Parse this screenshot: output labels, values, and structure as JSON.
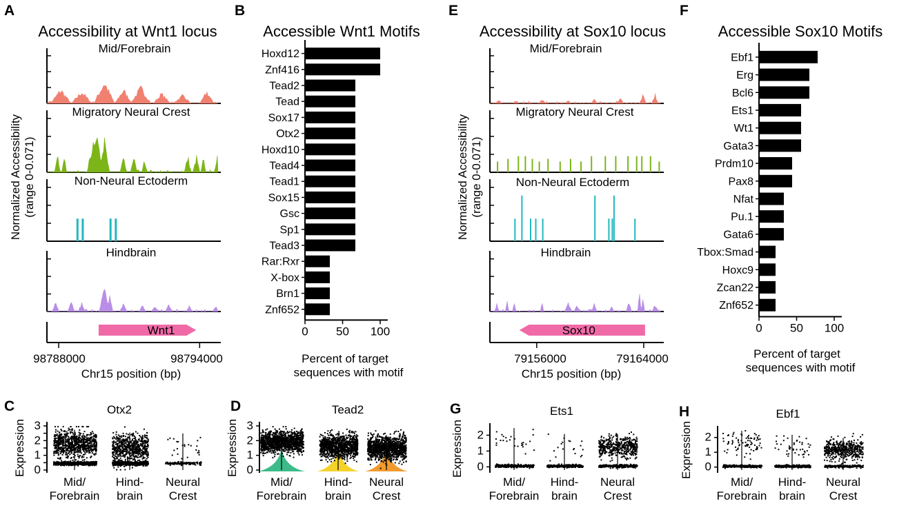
{
  "panel_letters": {
    "A": "A",
    "B": "B",
    "C": "C",
    "D": "D",
    "E": "E",
    "F": "F",
    "G": "G",
    "H": "H"
  },
  "colors": {
    "mid_forebrain": "#f08070",
    "neural_crest": "#7cb518",
    "non_neural": "#1fb8bf",
    "hindbrain": "#b98ee6",
    "gene": "#f06aa8",
    "bar": "#000000",
    "violin_mid": "#3dba8a",
    "violin_hind": "#f5d22a",
    "violin_nc": "#f29a2e"
  },
  "chart_data": [
    {
      "id": "A",
      "type": "area",
      "title": "Accessibility at Wnt1 locus",
      "ylabel": "Normalized Accessibility (range 0-0.071)",
      "xlabel": "Chr15 position (bp)",
      "x_ticks": [
        98788000,
        98794000
      ],
      "xlim": [
        98787500,
        98794900
      ],
      "tracks": [
        "Mid/Forebrain",
        "Migratory Neural Crest",
        "Non-Neural Ectoderm",
        "Hindbrain"
      ],
      "gene": {
        "name": "Wnt1",
        "start": 98789700,
        "end": 98793850,
        "strand": "+"
      }
    },
    {
      "id": "B",
      "type": "bar",
      "orientation": "horizontal",
      "title": "Accessible Wnt1 Motifs",
      "categories": [
        "Hoxd12",
        "Znf416",
        "Tead2",
        "Tead",
        "Sox17",
        "Otx2",
        "Hoxd10",
        "Tead4",
        "Tead1",
        "Sox15",
        "Gsc",
        "Sp1",
        "Tead3",
        "Rar:Rxr",
        "X-box",
        "Brn1",
        "Znf652"
      ],
      "values": [
        100,
        100,
        67,
        67,
        67,
        67,
        67,
        67,
        67,
        67,
        67,
        67,
        67,
        33,
        33,
        33,
        33
      ],
      "xlim": [
        0,
        110
      ],
      "x_ticks": [
        0,
        50,
        100
      ],
      "xlabel": "Percent of target sequences with motif",
      "xlabel_lines": [
        "Percent of target",
        "sequences with motif"
      ]
    },
    {
      "id": "E",
      "type": "area",
      "title": "Accessibility at Sox10 locus",
      "ylabel": "Normalized Accessibility (range 0-0.071)",
      "xlabel": "Chr15 position (bp)",
      "x_ticks": [
        79156000,
        79164000
      ],
      "xlim": [
        79152500,
        79165500
      ],
      "tracks": [
        "Mid/Forebrain",
        "Migratory Neural Crest",
        "Non-Neural Ectoderm",
        "Hindbrain"
      ],
      "gene": {
        "name": "Sox10",
        "start": 79154700,
        "end": 79164100,
        "strand": "-"
      }
    },
    {
      "id": "F",
      "type": "bar",
      "orientation": "horizontal",
      "title": "Accessible Sox10 Motifs",
      "categories": [
        "Ebf1",
        "Erg",
        "Bcl6",
        "Ets1",
        "Wt1",
        "Gata3",
        "Prdm10",
        "Pax8",
        "Nfat",
        "Pu.1",
        "Gata6",
        "Tbox:Smad",
        "Hoxc9",
        "Zcan22",
        "Znf652"
      ],
      "values": [
        78,
        67,
        67,
        56,
        56,
        56,
        44,
        44,
        33,
        33,
        33,
        22,
        22,
        22,
        22
      ],
      "xlim": [
        0,
        110
      ],
      "x_ticks": [
        0,
        50,
        100
      ],
      "xlabel": "Percent of target sequences with motif",
      "xlabel_lines": [
        "Percent of target",
        "sequences with motif"
      ]
    },
    {
      "id": "C",
      "type": "scatter",
      "title": "Otx2",
      "ylabel": "Expression",
      "ylim": [
        0,
        3
      ],
      "y_ticks": [
        0,
        0.5,
        1,
        1.5,
        2,
        2.5,
        3
      ],
      "groups": [
        "Mid/ Forebrain",
        "Hind- brain",
        "Neural Crest"
      ],
      "group_lines": [
        [
          "Mid/",
          "Forebrain"
        ],
        [
          "Hind-",
          "brain"
        ],
        [
          "Neural",
          "Crest"
        ]
      ]
    },
    {
      "id": "D",
      "type": "scatter",
      "title": "Tead2",
      "ylabel": "Expression",
      "ylim": [
        0,
        3
      ],
      "y_ticks": [
        0,
        1,
        2,
        3
      ],
      "groups": [
        "Mid/ Forebrain",
        "Hind- brain",
        "Neural Crest"
      ],
      "group_lines": [
        [
          "Mid/",
          "Forebrain"
        ],
        [
          "Hind-",
          "brain"
        ],
        [
          "Neural",
          "Crest"
        ]
      ]
    },
    {
      "id": "G",
      "type": "scatter",
      "title": "Ets1",
      "ylabel": "Expression",
      "ylim": [
        -0.2,
        2.5
      ],
      "y_ticks": [
        0,
        1,
        2
      ],
      "groups": [
        "Mid/ Forebrain",
        "Hind- brain",
        "Neural Crest"
      ],
      "group_lines": [
        [
          "Mid/",
          "Forebrain"
        ],
        [
          "Hind-",
          "brain"
        ],
        [
          "Neural",
          "Crest"
        ]
      ]
    },
    {
      "id": "H",
      "type": "scatter",
      "title": "Ebf1",
      "ylabel": "Expression",
      "ylim": [
        -0.2,
        2.5
      ],
      "y_ticks": [
        0,
        1,
        2
      ],
      "groups": [
        "Mid/ Forebrain",
        "Hind- brain",
        "Neural Crest"
      ],
      "group_lines": [
        [
          "Mid/",
          "Forebrain"
        ],
        [
          "Hind-",
          "brain"
        ],
        [
          "Neural",
          "Crest"
        ]
      ]
    }
  ]
}
